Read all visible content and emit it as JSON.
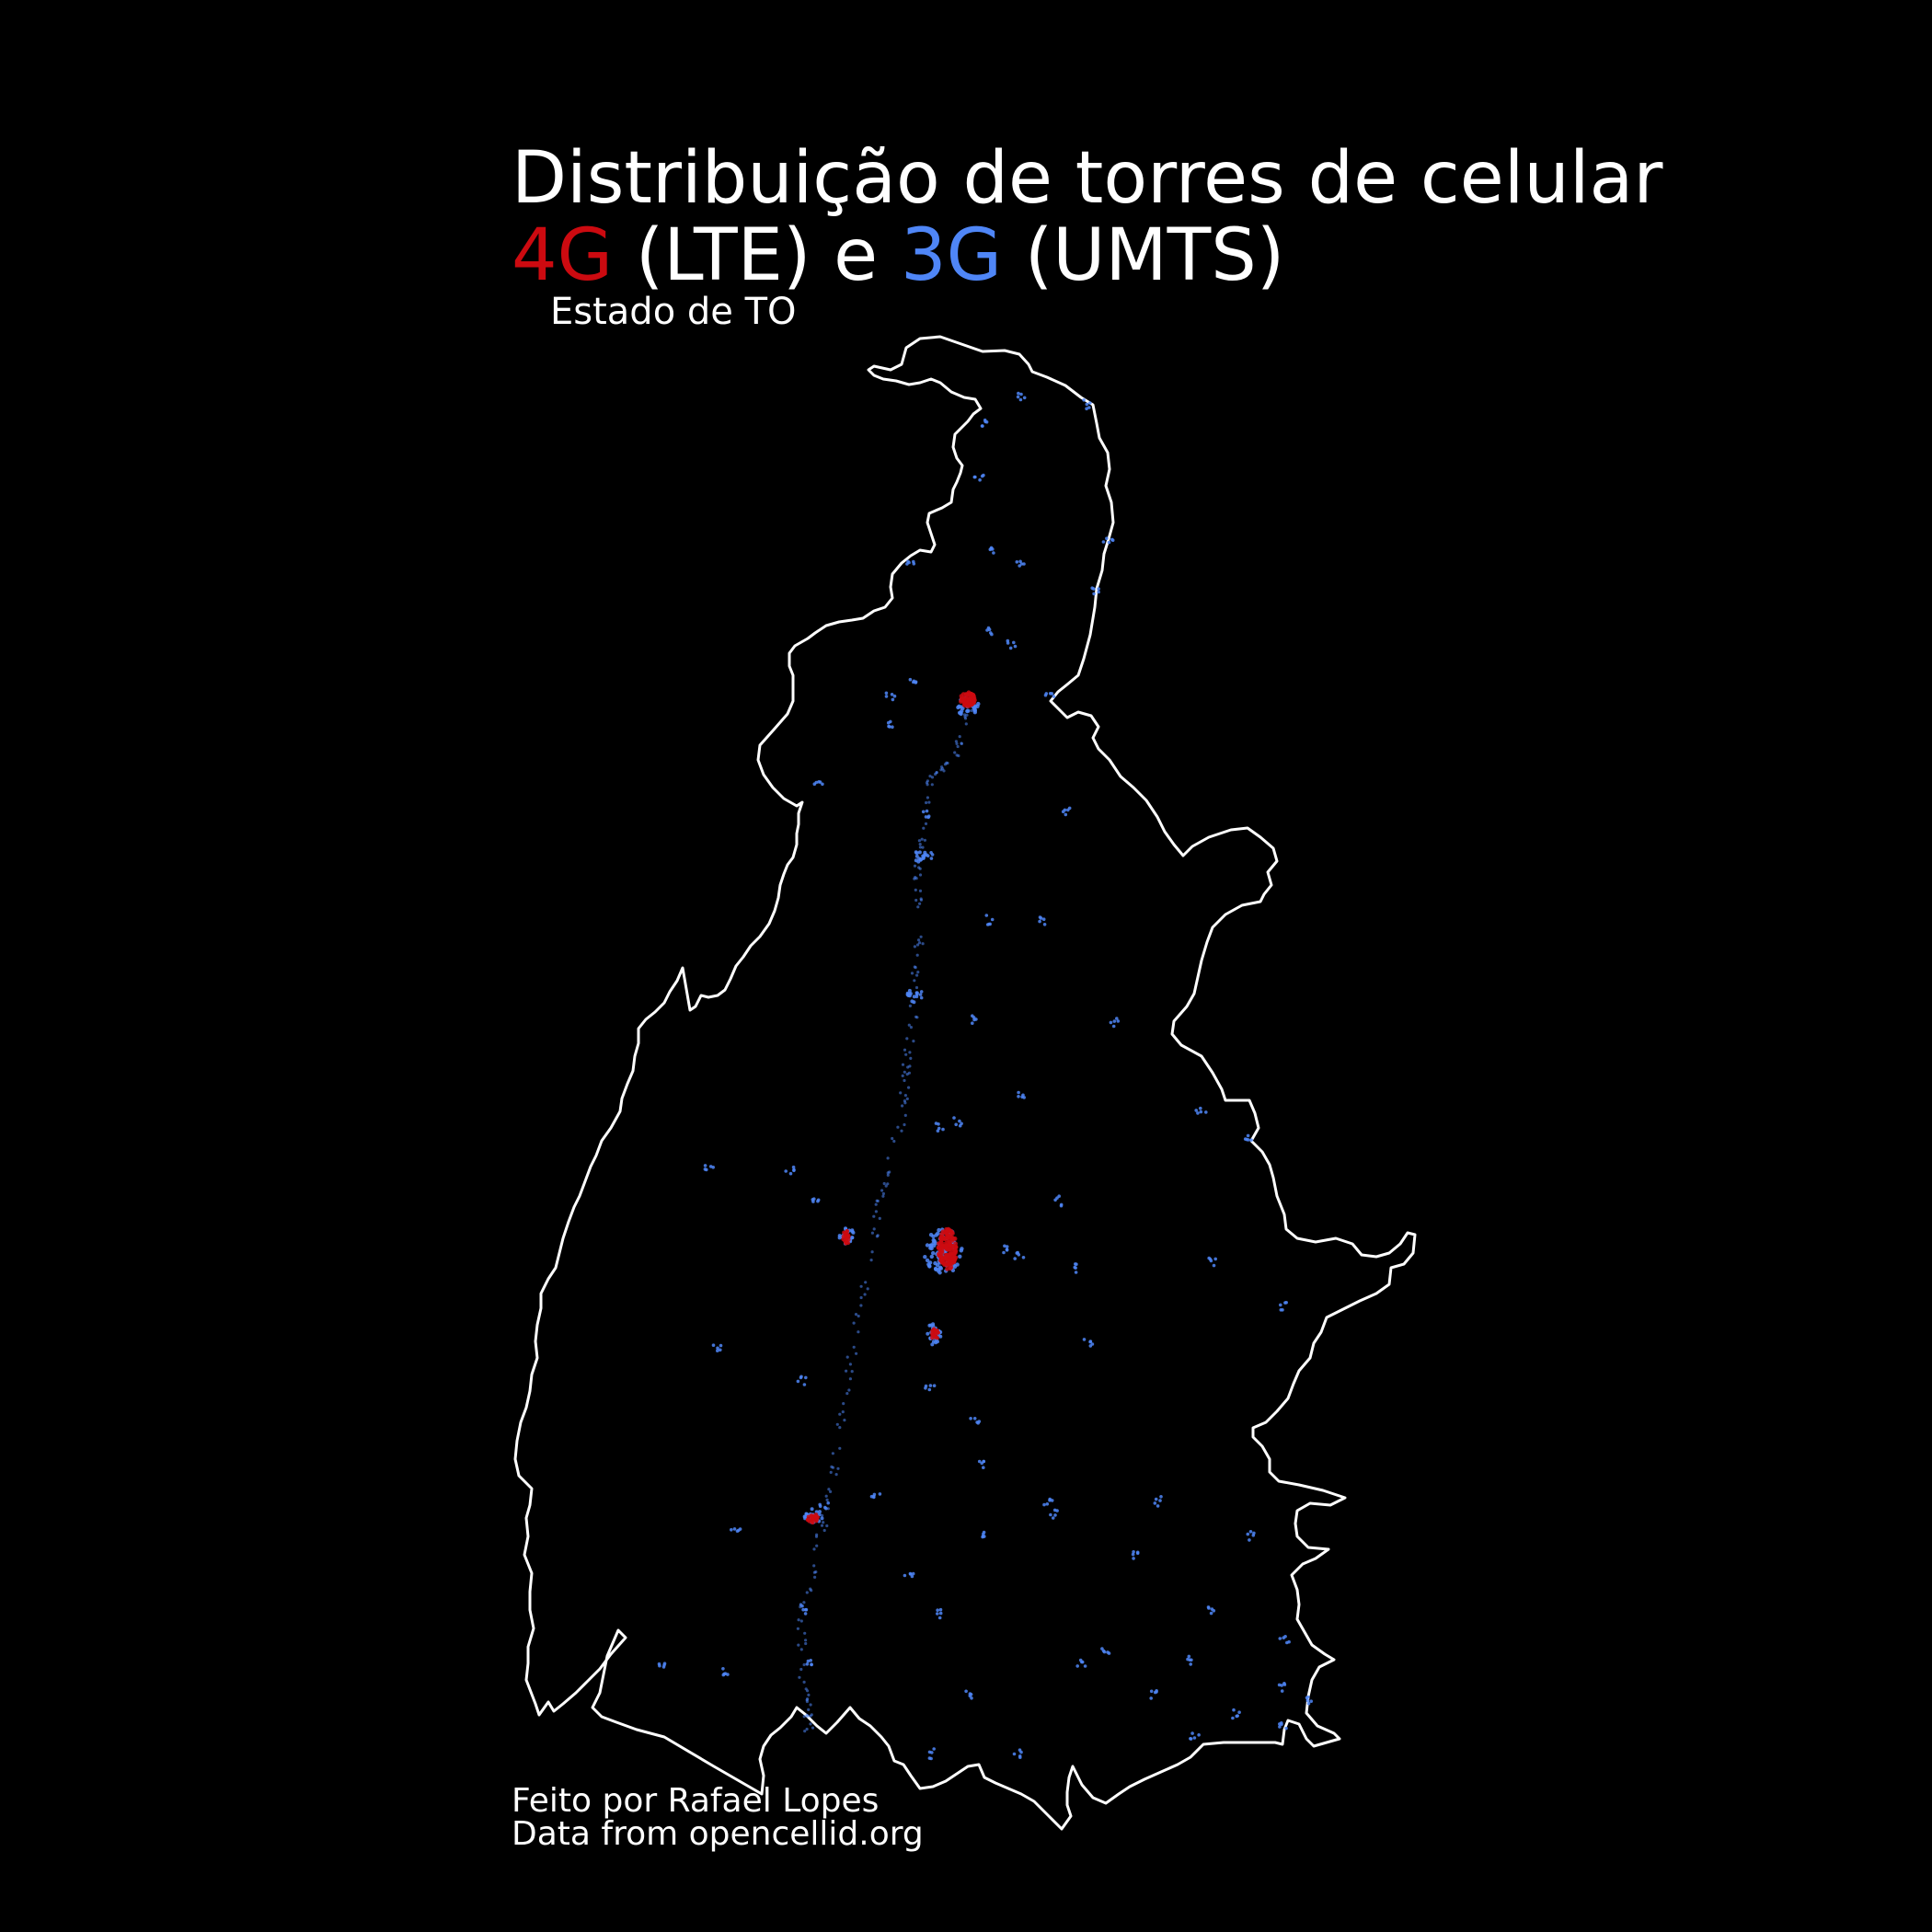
{
  "title": {
    "line1": "Distribuição de torres de celular",
    "line2_4g": "4G",
    "line2_lte": " (LTE) e ",
    "line2_3g": "3G",
    "line2_umts": " (UMTS)"
  },
  "subtitle": "Estado de TO",
  "caption": {
    "author": "Feito por Rafael Lopes",
    "source": "Data from opencellid.org"
  },
  "colors": {
    "background": "#000000",
    "border": "#ffffff",
    "lte": "#cc0a10",
    "umts": "#4f86f7"
  }
}
